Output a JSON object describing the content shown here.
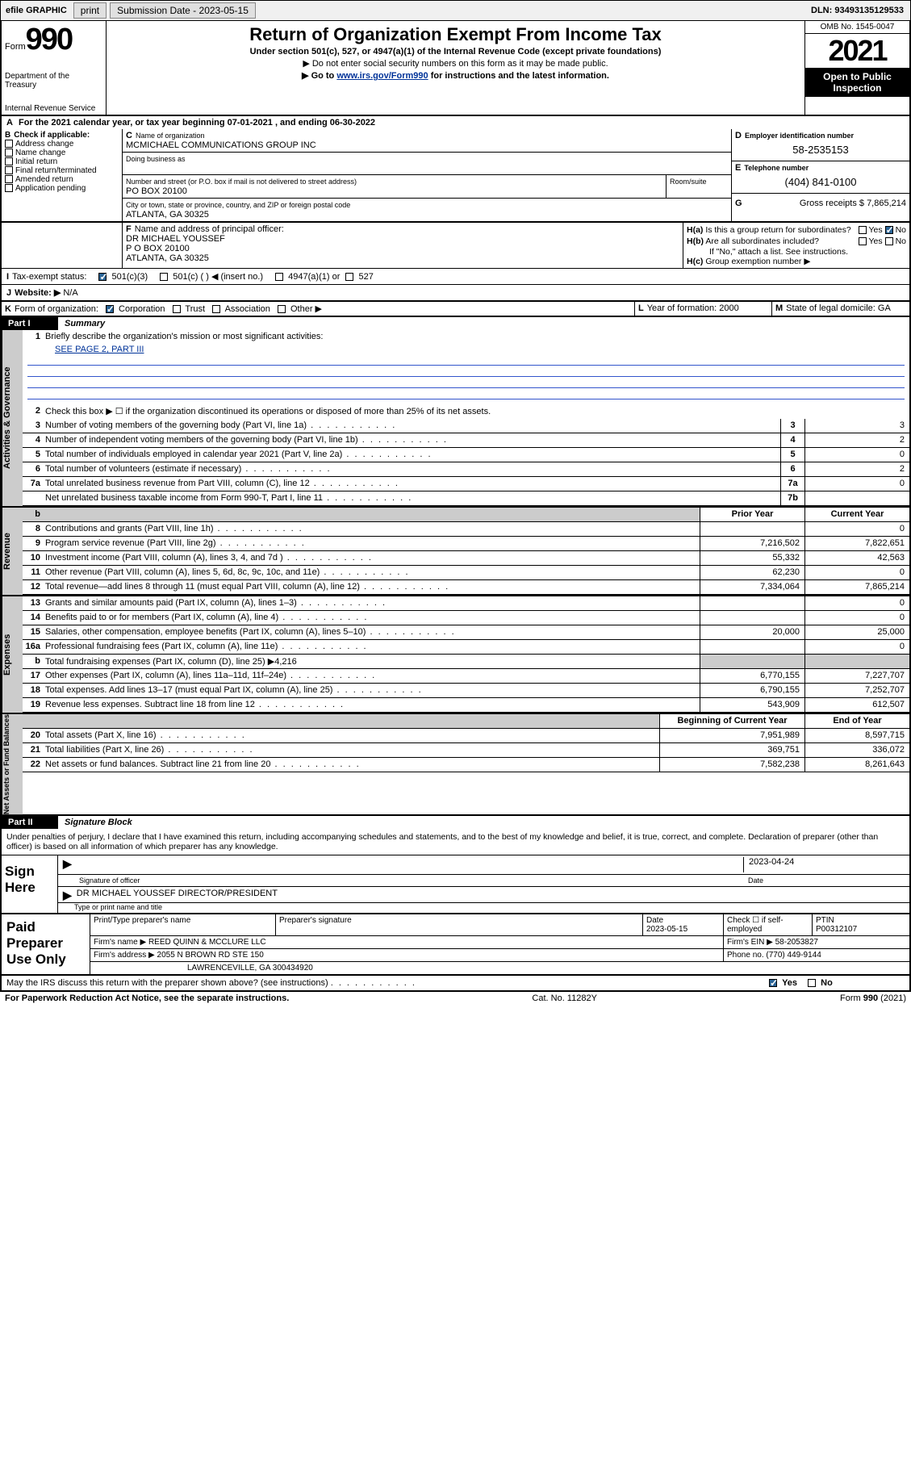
{
  "toolbar": {
    "efile": "efile GRAPHIC",
    "print": "print",
    "subdate_label": "Submission Date - 2023-05-15",
    "dln": "DLN: 93493135129533"
  },
  "header": {
    "form_word": "Form",
    "form_num": "990",
    "dept": "Department of the Treasury",
    "irs": "Internal Revenue Service",
    "title": "Return of Organization Exempt From Income Tax",
    "sub1": "Under section 501(c), 527, or 4947(a)(1) of the Internal Revenue Code (except private foundations)",
    "sub2": "▶ Do not enter social security numbers on this form as it may be made public.",
    "sub3_pre": "▶ Go to ",
    "sub3_link": "www.irs.gov/Form990",
    "sub3_post": " for instructions and the latest information.",
    "omb": "OMB No. 1545-0047",
    "year": "2021",
    "open1": "Open to Public",
    "open2": "Inspection"
  },
  "period": "For the 2021 calendar year, or tax year beginning 07-01-2021   , and ending 06-30-2022",
  "B": {
    "label": "Check if applicable:",
    "addr": "Address change",
    "name": "Name change",
    "init": "Initial return",
    "final": "Final return/terminated",
    "amend": "Amended return",
    "app": "Application pending"
  },
  "C": {
    "name_lbl": "Name of organization",
    "name": "MCMICHAEL COMMUNICATIONS GROUP INC",
    "dba_lbl": "Doing business as",
    "street_lbl": "Number and street (or P.O. box if mail is not delivered to street address)",
    "room_lbl": "Room/suite",
    "street": "PO BOX 20100",
    "city_lbl": "City or town, state or province, country, and ZIP or foreign postal code",
    "city": "ATLANTA, GA  30325"
  },
  "D": {
    "lbl": "Employer identification number",
    "val": "58-2535153"
  },
  "E": {
    "lbl": "Telephone number",
    "val": "(404) 841-0100"
  },
  "G": {
    "lbl": "Gross receipts $",
    "val": "7,865,214"
  },
  "F": {
    "lbl": "Name and address of principal officer:",
    "name": "DR MICHAEL YOUSSEF",
    "addr1": "P O BOX 20100",
    "addr2": "ATLANTA, GA  30325"
  },
  "H": {
    "a": "Is this a group return for subordinates?",
    "b": "Are all subordinates included?",
    "b2": "If \"No,\" attach a list. See instructions.",
    "c": "Group exemption number ▶",
    "yes": "Yes",
    "no": "No"
  },
  "I": {
    "lbl": "Tax-exempt status:",
    "opt1": "501(c)(3)",
    "opt2": "501(c) (   ) ◀ (insert no.)",
    "opt3": "4947(a)(1) or",
    "opt4": "527"
  },
  "J": {
    "lbl": "Website: ▶",
    "val": "N/A"
  },
  "K": {
    "lbl": "Form of organization:",
    "corp": "Corporation",
    "trust": "Trust",
    "assoc": "Association",
    "other": "Other ▶"
  },
  "L": {
    "lbl": "Year of formation:",
    "val": "2000"
  },
  "M": {
    "lbl": "State of legal domicile:",
    "val": "GA"
  },
  "part1": {
    "label": "Part I",
    "title": "Summary"
  },
  "vert": {
    "ag": "Activities & Governance",
    "rev": "Revenue",
    "exp": "Expenses",
    "na": "Net Assets or\nFund Balances"
  },
  "l1": {
    "text": "Briefly describe the organization's mission or most significant activities:",
    "val": "SEE PAGE 2, PART III"
  },
  "l2": {
    "text": "Check this box ▶ ☐  if the organization discontinued its operations or disposed of more than 25% of its net assets."
  },
  "lines_ag": [
    {
      "n": "3",
      "t": "Number of voting members of the governing body (Part VI, line 1a)",
      "r": "3",
      "v": "3"
    },
    {
      "n": "4",
      "t": "Number of independent voting members of the governing body (Part VI, line 1b)",
      "r": "4",
      "v": "2"
    },
    {
      "n": "5",
      "t": "Total number of individuals employed in calendar year 2021 (Part V, line 2a)",
      "r": "5",
      "v": "0"
    },
    {
      "n": "6",
      "t": "Total number of volunteers (estimate if necessary)",
      "r": "6",
      "v": "2"
    },
    {
      "n": "7a",
      "t": "Total unrelated business revenue from Part VIII, column (C), line 12",
      "r": "7a",
      "v": "0"
    },
    {
      "n": "",
      "t": "Net unrelated business taxable income from Form 990-T, Part I, line 11",
      "r": "7b",
      "v": ""
    }
  ],
  "yearcols": {
    "prior": "Prior Year",
    "curr": "Current Year",
    "beg": "Beginning of Current Year",
    "end": "End of Year"
  },
  "lines_rev": [
    {
      "n": "8",
      "t": "Contributions and grants (Part VIII, line 1h)",
      "p": "",
      "c": "0"
    },
    {
      "n": "9",
      "t": "Program service revenue (Part VIII, line 2g)",
      "p": "7,216,502",
      "c": "7,822,651"
    },
    {
      "n": "10",
      "t": "Investment income (Part VIII, column (A), lines 3, 4, and 7d )",
      "p": "55,332",
      "c": "42,563"
    },
    {
      "n": "11",
      "t": "Other revenue (Part VIII, column (A), lines 5, 6d, 8c, 9c, 10c, and 11e)",
      "p": "62,230",
      "c": "0"
    },
    {
      "n": "12",
      "t": "Total revenue—add lines 8 through 11 (must equal Part VIII, column (A), line 12)",
      "p": "7,334,064",
      "c": "7,865,214"
    }
  ],
  "lines_exp": [
    {
      "n": "13",
      "t": "Grants and similar amounts paid (Part IX, column (A), lines 1–3)",
      "p": "",
      "c": "0"
    },
    {
      "n": "14",
      "t": "Benefits paid to or for members (Part IX, column (A), line 4)",
      "p": "",
      "c": "0"
    },
    {
      "n": "15",
      "t": "Salaries, other compensation, employee benefits (Part IX, column (A), lines 5–10)",
      "p": "20,000",
      "c": "25,000"
    },
    {
      "n": "16a",
      "t": "Professional fundraising fees (Part IX, column (A), line 11e)",
      "p": "",
      "c": "0"
    },
    {
      "n": "b",
      "t": "Total fundraising expenses (Part IX, column (D), line 25) ▶4,216",
      "p": "GRAY",
      "c": "GRAY"
    },
    {
      "n": "17",
      "t": "Other expenses (Part IX, column (A), lines 11a–11d, 11f–24e)",
      "p": "6,770,155",
      "c": "7,227,707"
    },
    {
      "n": "18",
      "t": "Total expenses. Add lines 13–17 (must equal Part IX, column (A), line 25)",
      "p": "6,790,155",
      "c": "7,252,707"
    },
    {
      "n": "19",
      "t": "Revenue less expenses. Subtract line 18 from line 12",
      "p": "543,909",
      "c": "612,507"
    }
  ],
  "lines_na": [
    {
      "n": "20",
      "t": "Total assets (Part X, line 16)",
      "p": "7,951,989",
      "c": "8,597,715"
    },
    {
      "n": "21",
      "t": "Total liabilities (Part X, line 26)",
      "p": "369,751",
      "c": "336,072"
    },
    {
      "n": "22",
      "t": "Net assets or fund balances. Subtract line 21 from line 20",
      "p": "7,582,238",
      "c": "8,261,643"
    }
  ],
  "part2": {
    "label": "Part II",
    "title": "Signature Block"
  },
  "sig": {
    "decl": "Under penalties of perjury, I declare that I have examined this return, including accompanying schedules and statements, and to the best of my knowledge and belief, it is true, correct, and complete. Declaration of preparer (other than officer) is based on all information of which preparer has any knowledge.",
    "signhere": "Sign\nHere",
    "sigoff": "Signature of officer",
    "date": "Date",
    "datev": "2023-04-24",
    "officer": "DR MICHAEL YOUSSEF  DIRECTOR/PRESIDENT",
    "typeline": "Type or print name and title"
  },
  "prep": {
    "left": "Paid\nPreparer\nUse Only",
    "h_name": "Print/Type preparer's name",
    "h_sig": "Preparer's signature",
    "h_date": "Date",
    "datev": "2023-05-15",
    "check": "Check ☐ if self-employed",
    "ptin_lbl": "PTIN",
    "ptin": "P00312107",
    "firm_lbl": "Firm's name    ▶",
    "firm": "REED QUINN & MCCLURE LLC",
    "ein_lbl": "Firm's EIN ▶",
    "ein": "58-2053827",
    "addr_lbl": "Firm's address ▶",
    "addr1": "2055 N BROWN RD STE 150",
    "addr2": "LAWRENCEVILLE, GA  300434920",
    "phone_lbl": "Phone no.",
    "phone": "(770) 449-9144"
  },
  "discuss": {
    "t": "May the IRS discuss this return with the preparer shown above? (see instructions)",
    "yes": "Yes",
    "no": "No"
  },
  "footer": {
    "left": "For Paperwork Reduction Act Notice, see the separate instructions.",
    "mid": "Cat. No. 11282Y",
    "right": "Form 990 (2021)"
  }
}
